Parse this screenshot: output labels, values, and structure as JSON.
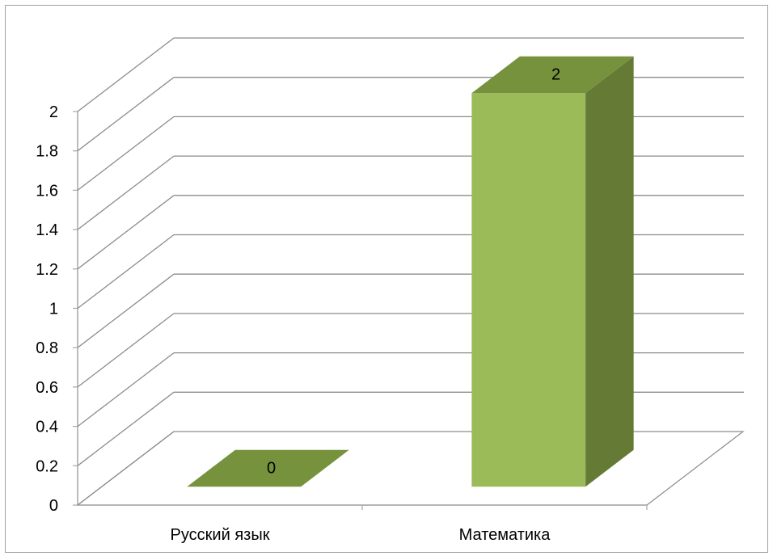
{
  "chart_data": {
    "type": "bar",
    "style": "3d-column",
    "categories": [
      "Русский язык",
      "Математика"
    ],
    "series": [
      {
        "values": [
          0,
          2
        ]
      }
    ],
    "data_labels": [
      "0",
      "2"
    ],
    "y_ticks": [
      "0",
      "0.2",
      "0.4",
      "0.6",
      "0.8",
      "1",
      "1.2",
      "1.4",
      "1.6",
      "1.8",
      "2"
    ],
    "ylim": [
      0,
      2
    ],
    "grid": true,
    "legend": "none",
    "colors": {
      "bar_front": "#9bbb59",
      "bar_side": "#647a35",
      "bar_top": "#76923c",
      "grid": "#8c8c8c",
      "axis": "#a6a6a6"
    }
  }
}
